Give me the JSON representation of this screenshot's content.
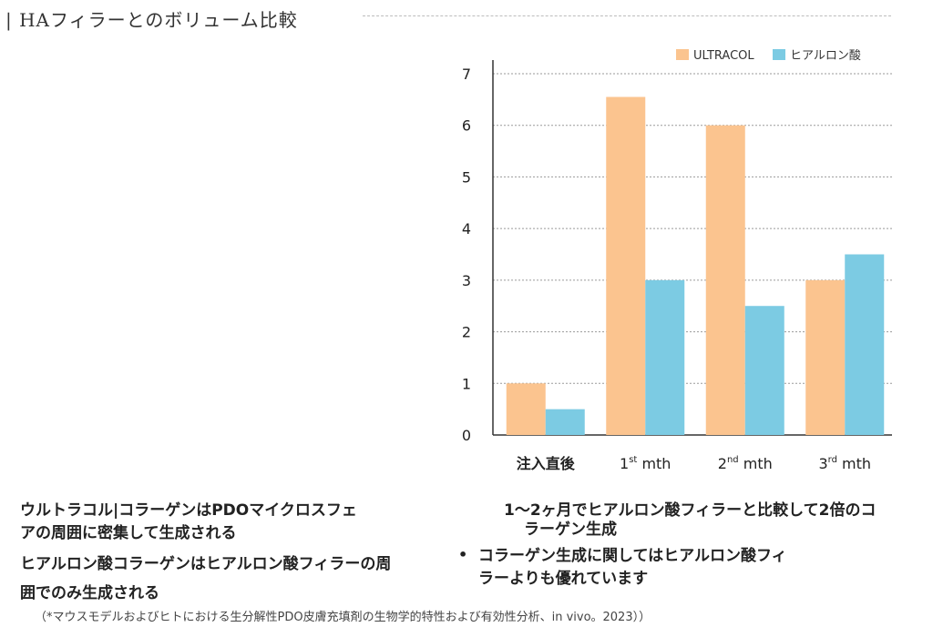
{
  "title": "| HAフィラーとのボリューム比較",
  "chart_data": {
    "type": "bar",
    "categories": [
      {
        "main": "注入直後",
        "sup": "",
        "suffix": ""
      },
      {
        "main": "1",
        "sup": "st",
        "suffix": " mth"
      },
      {
        "main": "2",
        "sup": "nd",
        "suffix": " mth"
      },
      {
        "main": "3",
        "sup": "rd",
        "suffix": " mth"
      }
    ],
    "series": [
      {
        "name": "ULTRACOL",
        "color": "#fbc48f",
        "values": [
          1,
          6.55,
          6,
          3
        ]
      },
      {
        "name": "ヒアルロン酸",
        "color": "#7ccbe3",
        "values": [
          0.5,
          3,
          2.5,
          3.5
        ]
      }
    ],
    "ylim": [
      0,
      7
    ],
    "yticks": [
      "0",
      "1",
      "2",
      "3",
      "4",
      "5",
      "6",
      "7"
    ],
    "grid": true,
    "legend": "top-right"
  },
  "left_texts": {
    "line1": "ウルトラコル|コラーゲンはPDOマイクロスフェ",
    "line2": "アの周囲に密集して生成される",
    "line3": "ヒアルロン酸コラーゲンはヒアルロン酸フィラーの周",
    "line4": "囲でのみ生成される"
  },
  "right_texts": {
    "line1": "1～2ヶ月でヒアルロン酸フィラーと比較して2倍のコ",
    "line2": "ラーゲン生成",
    "bullet": "•",
    "line3": "コラーゲン生成に関してはヒアルロン酸フィ",
    "line4": "ラーよりも優れています"
  },
  "footnote": "（*マウスモデルおよびヒトにおける生分解性PDO皮膚充填剤の生物学的特性および有効性分析、in vivo。2023））"
}
